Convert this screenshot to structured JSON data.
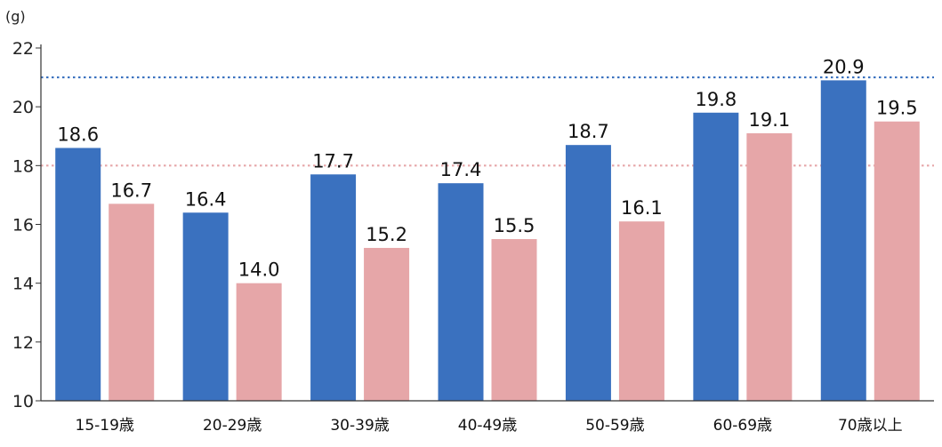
{
  "chart_data": {
    "type": "bar",
    "unit_label": "(g)",
    "categories": [
      "15-19歳",
      "20-29歳",
      "30-39歳",
      "40-49歳",
      "50-59歳",
      "60-69歳",
      "70歳以上"
    ],
    "series": [
      {
        "values": [
          18.6,
          16.4,
          17.7,
          17.4,
          18.7,
          19.8,
          20.9
        ],
        "color": "#3a71bf"
      },
      {
        "values": [
          16.7,
          14.0,
          15.2,
          15.5,
          16.1,
          19.1,
          19.5
        ],
        "color": "#e6a6a8"
      }
    ],
    "value_labels": [
      [
        "18.6",
        "16.4",
        "17.7",
        "17.4",
        "18.7",
        "19.8",
        "20.9"
      ],
      [
        "16.7",
        "14.0",
        "15.2",
        "15.5",
        "16.1",
        "19.1",
        "19.5"
      ]
    ],
    "ylim": [
      10,
      22
    ],
    "yticks": [
      10,
      12,
      14,
      16,
      18,
      20,
      22
    ],
    "reference_lines": [
      {
        "value": 21,
        "color": "#3a71bf",
        "style": "dotted"
      },
      {
        "value": 18,
        "color": "#e6a6a8",
        "style": "dotted"
      }
    ],
    "grid": false
  }
}
